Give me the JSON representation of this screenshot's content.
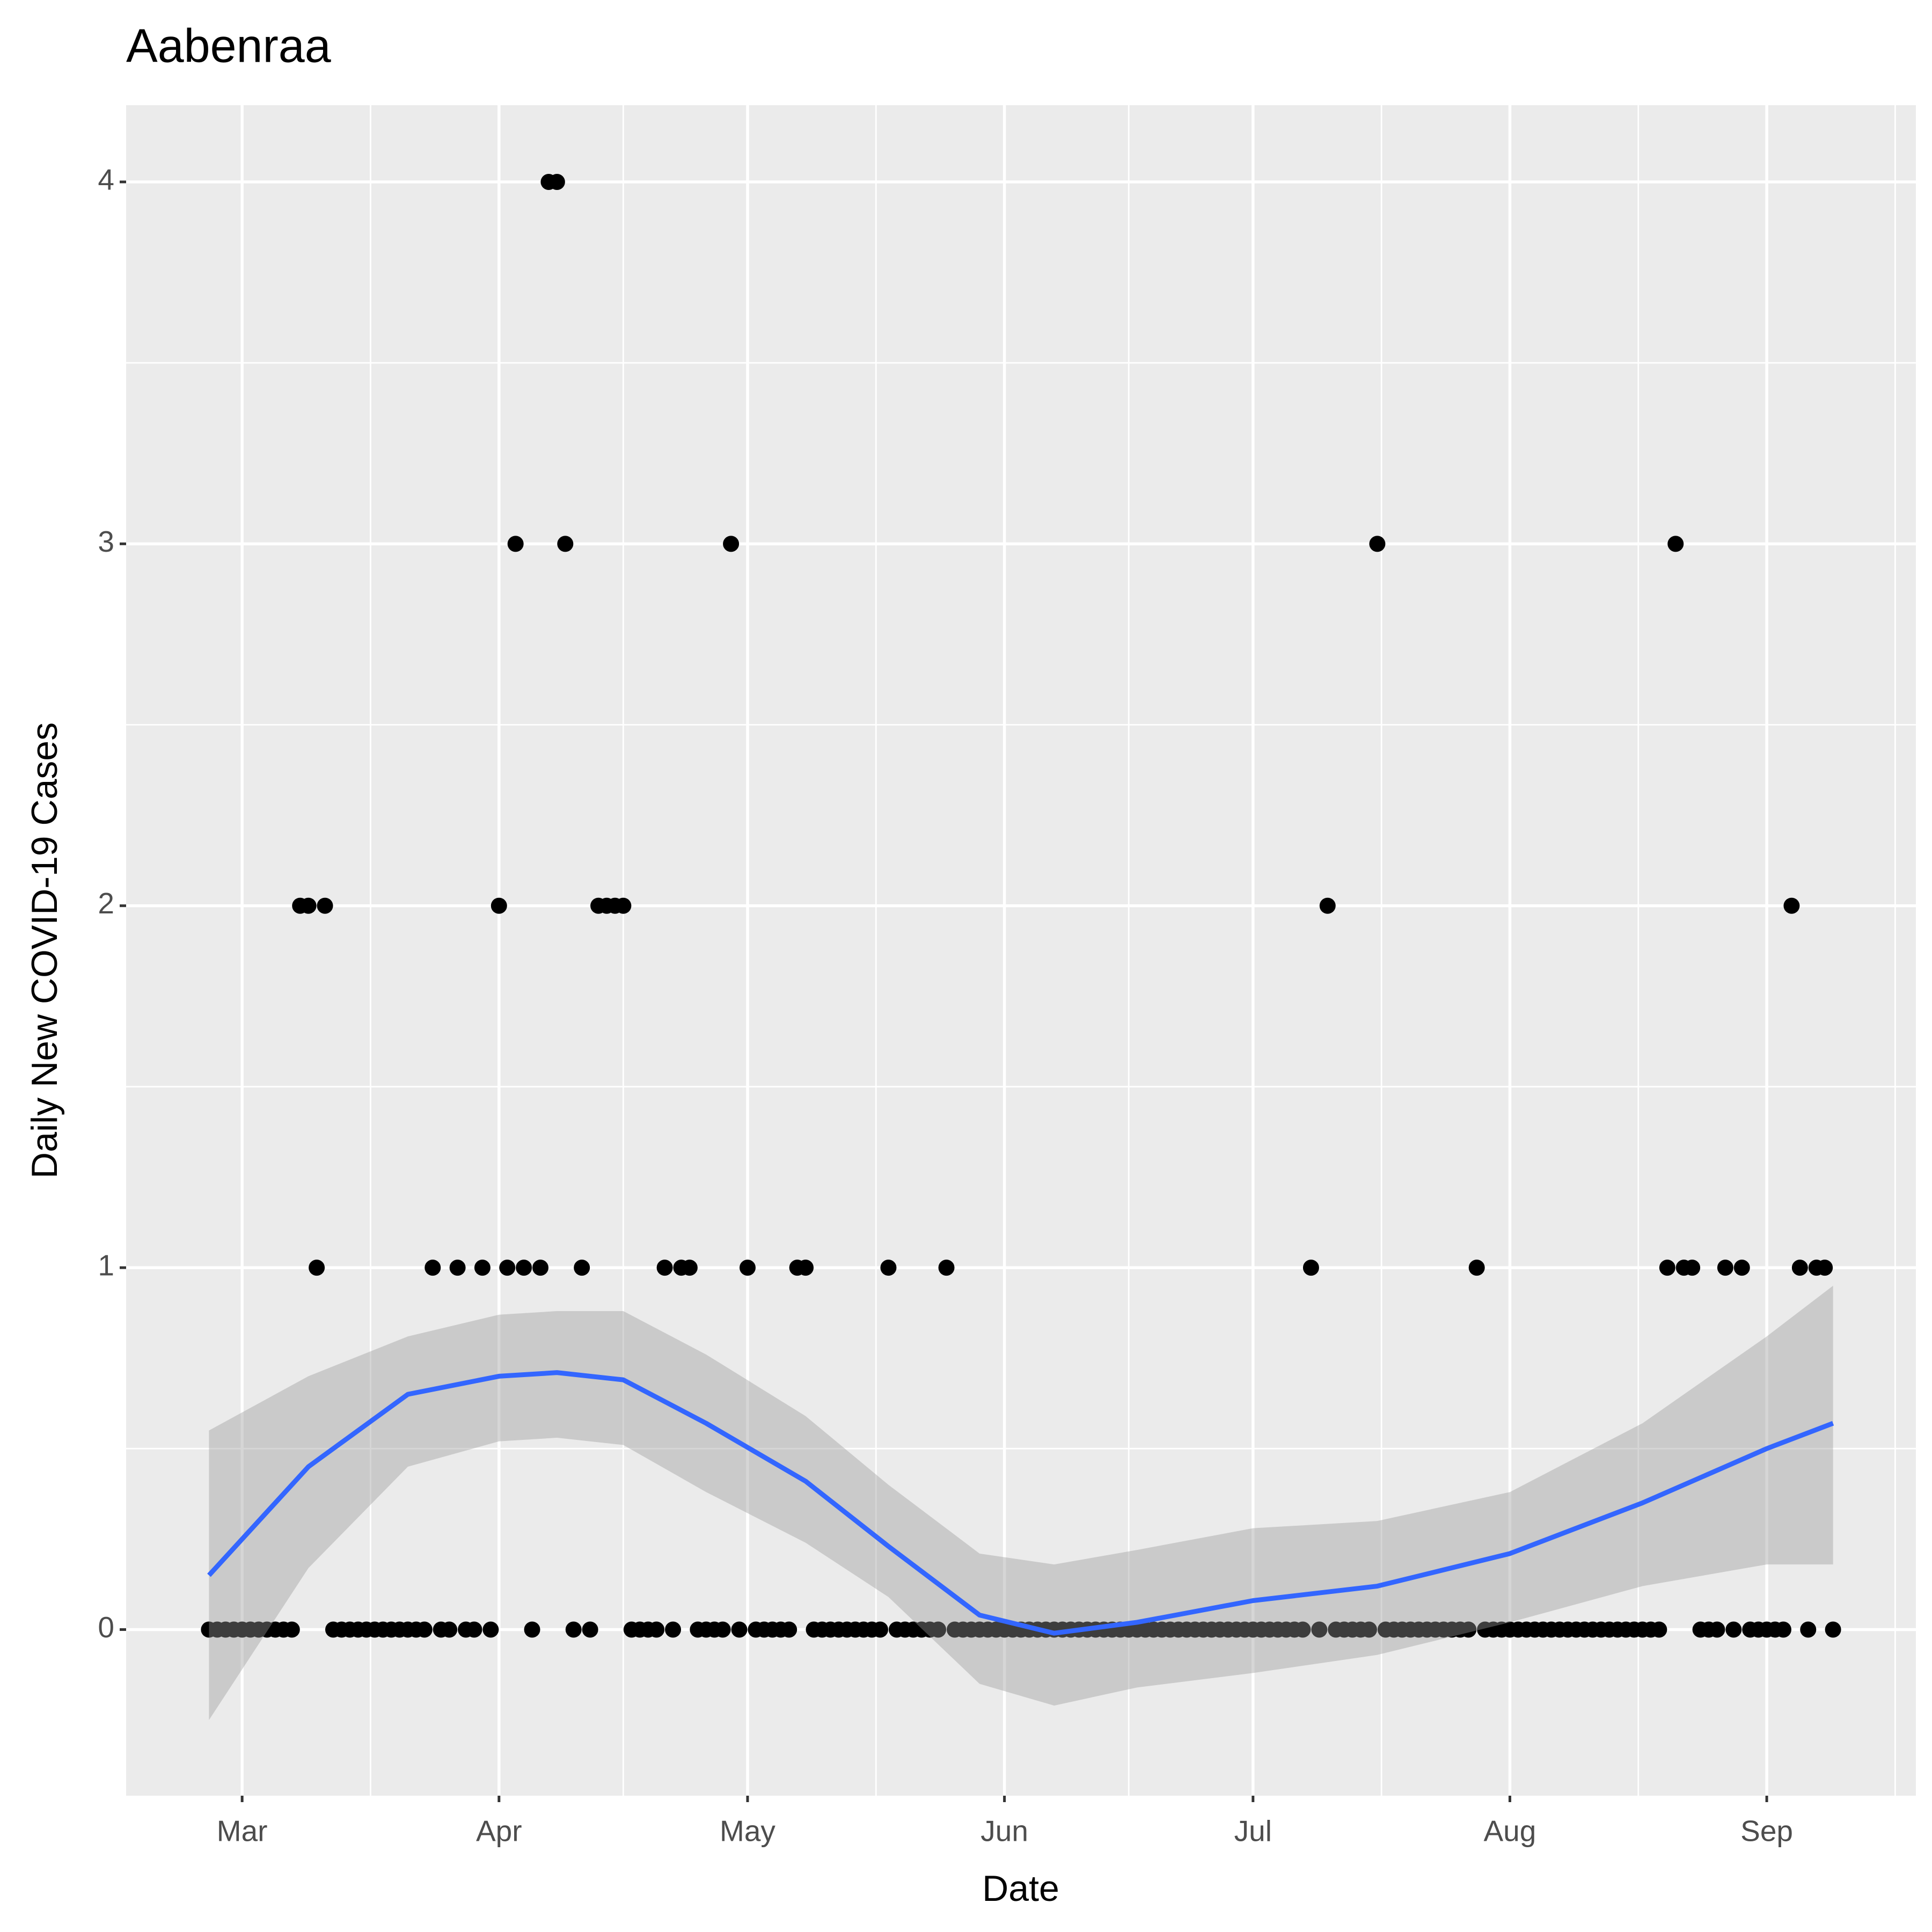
{
  "chart_data": {
    "type": "scatter",
    "title": "Aabenraa",
    "x_label": "Date",
    "y_label": "Daily New COVID-19 Cases",
    "color": "#000000",
    "grid": true,
    "xlim": [
      "02-16",
      "09-19"
    ],
    "xticks": [
      {
        "value": "03-01",
        "label": "Mar"
      },
      {
        "value": "04-01",
        "label": "Apr"
      },
      {
        "value": "05-01",
        "label": "May"
      },
      {
        "value": "06-01",
        "label": "Jun"
      },
      {
        "value": "07-01",
        "label": "Jul"
      },
      {
        "value": "08-01",
        "label": "Aug"
      },
      {
        "value": "09-01",
        "label": "Sep"
      }
    ],
    "ylim": [
      -0.459,
      4.212
    ],
    "yticks": [
      0,
      1,
      2,
      3,
      4
    ],
    "x": [
      "02-26",
      "02-27",
      "02-28",
      "02-29",
      "03-01",
      "03-02",
      "03-03",
      "03-04",
      "03-05",
      "03-06",
      "03-07",
      "03-08",
      "03-09",
      "03-10",
      "03-11",
      "03-12",
      "03-13",
      "03-14",
      "03-15",
      "03-16",
      "03-17",
      "03-18",
      "03-19",
      "03-20",
      "03-21",
      "03-22",
      "03-23",
      "03-24",
      "03-25",
      "03-26",
      "03-27",
      "03-28",
      "03-29",
      "03-30",
      "03-31",
      "04-01",
      "04-02",
      "04-03",
      "04-04",
      "04-05",
      "04-06",
      "04-07",
      "04-08",
      "04-09",
      "04-10",
      "04-11",
      "04-12",
      "04-13",
      "04-14",
      "04-15",
      "04-16",
      "04-17",
      "04-18",
      "04-19",
      "04-20",
      "04-21",
      "04-22",
      "04-23",
      "04-24",
      "04-25",
      "04-26",
      "04-27",
      "04-28",
      "04-29",
      "04-30",
      "05-01",
      "05-02",
      "05-03",
      "05-04",
      "05-05",
      "05-06",
      "05-07",
      "05-08",
      "05-09",
      "05-10",
      "05-11",
      "05-12",
      "05-13",
      "05-14",
      "05-15",
      "05-16",
      "05-17",
      "05-18",
      "05-19",
      "05-20",
      "05-21",
      "05-22",
      "05-23",
      "05-24",
      "05-25",
      "05-26",
      "05-27",
      "05-28",
      "05-29",
      "05-30",
      "05-31",
      "06-01",
      "06-02",
      "06-03",
      "06-04",
      "06-05",
      "06-06",
      "06-07",
      "06-08",
      "06-09",
      "06-10",
      "06-11",
      "06-12",
      "06-13",
      "06-14",
      "06-15",
      "06-16",
      "06-17",
      "06-18",
      "06-19",
      "06-20",
      "06-21",
      "06-22",
      "06-23",
      "06-24",
      "06-25",
      "06-26",
      "06-27",
      "06-28",
      "06-29",
      "06-30",
      "07-01",
      "07-02",
      "07-03",
      "07-04",
      "07-05",
      "07-06",
      "07-07",
      "07-08",
      "07-09",
      "07-10",
      "07-11",
      "07-12",
      "07-13",
      "07-14",
      "07-15",
      "07-16",
      "07-17",
      "07-18",
      "07-19",
      "07-20",
      "07-21",
      "07-22",
      "07-23",
      "07-24",
      "07-25",
      "07-26",
      "07-27",
      "07-28",
      "07-29",
      "07-30",
      "07-31",
      "08-01",
      "08-02",
      "08-03",
      "08-04",
      "08-05",
      "08-06",
      "08-07",
      "08-08",
      "08-09",
      "08-10",
      "08-11",
      "08-12",
      "08-13",
      "08-14",
      "08-15",
      "08-16",
      "08-17",
      "08-18",
      "08-19",
      "08-20",
      "08-21",
      "08-22",
      "08-23",
      "08-24",
      "08-25",
      "08-26",
      "08-27",
      "08-28",
      "08-29",
      "08-30",
      "08-31",
      "09-01",
      "09-02",
      "09-03",
      "09-04",
      "09-05",
      "09-06",
      "09-07",
      "09-08",
      "09-09"
    ],
    "values": [
      0,
      0,
      0,
      0,
      0,
      0,
      0,
      0,
      0,
      0,
      0,
      2,
      2,
      1,
      2,
      0,
      0,
      0,
      0,
      0,
      0,
      0,
      0,
      0,
      0,
      0,
      0,
      1,
      0,
      0,
      1,
      0,
      0,
      1,
      0,
      2,
      1,
      3,
      1,
      0,
      1,
      4,
      4,
      3,
      0,
      1,
      0,
      2,
      2,
      2,
      2,
      0,
      0,
      0,
      0,
      1,
      0,
      1,
      1,
      0,
      0,
      0,
      0,
      3,
      0,
      1,
      0,
      0,
      0,
      0,
      0,
      1,
      1,
      0,
      0,
      0,
      0,
      0,
      0,
      0,
      0,
      0,
      1,
      0,
      0,
      0,
      0,
      0,
      0,
      1,
      0,
      0,
      0,
      0,
      0,
      0,
      0,
      0,
      0,
      0,
      0,
      0,
      0,
      0,
      0,
      0,
      0,
      0,
      0,
      0,
      0,
      0,
      0,
      0,
      0,
      0,
      0,
      0,
      0,
      0,
      0,
      0,
      0,
      0,
      0,
      0,
      0,
      0,
      0,
      0,
      0,
      0,
      0,
      1,
      0,
      2,
      0,
      0,
      0,
      0,
      0,
      3,
      0,
      0,
      0,
      0,
      0,
      0,
      0,
      0,
      0,
      0,
      0,
      1,
      0,
      0,
      0,
      0,
      0,
      0,
      0,
      0,
      0,
      0,
      0,
      0,
      0,
      0,
      0,
      0,
      0,
      0,
      0,
      0,
      0,
      0,
      1,
      3,
      1,
      1,
      0,
      0,
      0,
      1,
      0,
      1,
      0,
      0,
      0,
      0,
      0,
      2,
      1,
      0,
      1,
      1,
      0
    ],
    "trend": {
      "color": "#3366ff",
      "band_color": "#999999",
      "x": [
        "02-26",
        "03-09",
        "03-21",
        "04-01",
        "04-08",
        "04-16",
        "04-26",
        "05-08",
        "05-18",
        "05-29",
        "06-07",
        "06-17",
        "07-01",
        "07-16",
        "08-01",
        "08-17",
        "09-01",
        "09-09"
      ],
      "values": [
        0.15,
        0.45,
        0.65,
        0.7,
        0.71,
        0.69,
        0.57,
        0.41,
        0.23,
        0.04,
        -0.01,
        0.02,
        0.08,
        0.12,
        0.21,
        0.35,
        0.5,
        0.57
      ],
      "lower": [
        -0.25,
        0.17,
        0.45,
        0.52,
        0.53,
        0.51,
        0.38,
        0.24,
        0.09,
        -0.15,
        -0.21,
        -0.16,
        -0.12,
        -0.07,
        0.02,
        0.12,
        0.18,
        0.18
      ],
      "upper": [
        0.55,
        0.7,
        0.81,
        0.87,
        0.88,
        0.88,
        0.76,
        0.59,
        0.4,
        0.21,
        0.18,
        0.22,
        0.28,
        0.3,
        0.38,
        0.57,
        0.81,
        0.95
      ]
    }
  }
}
